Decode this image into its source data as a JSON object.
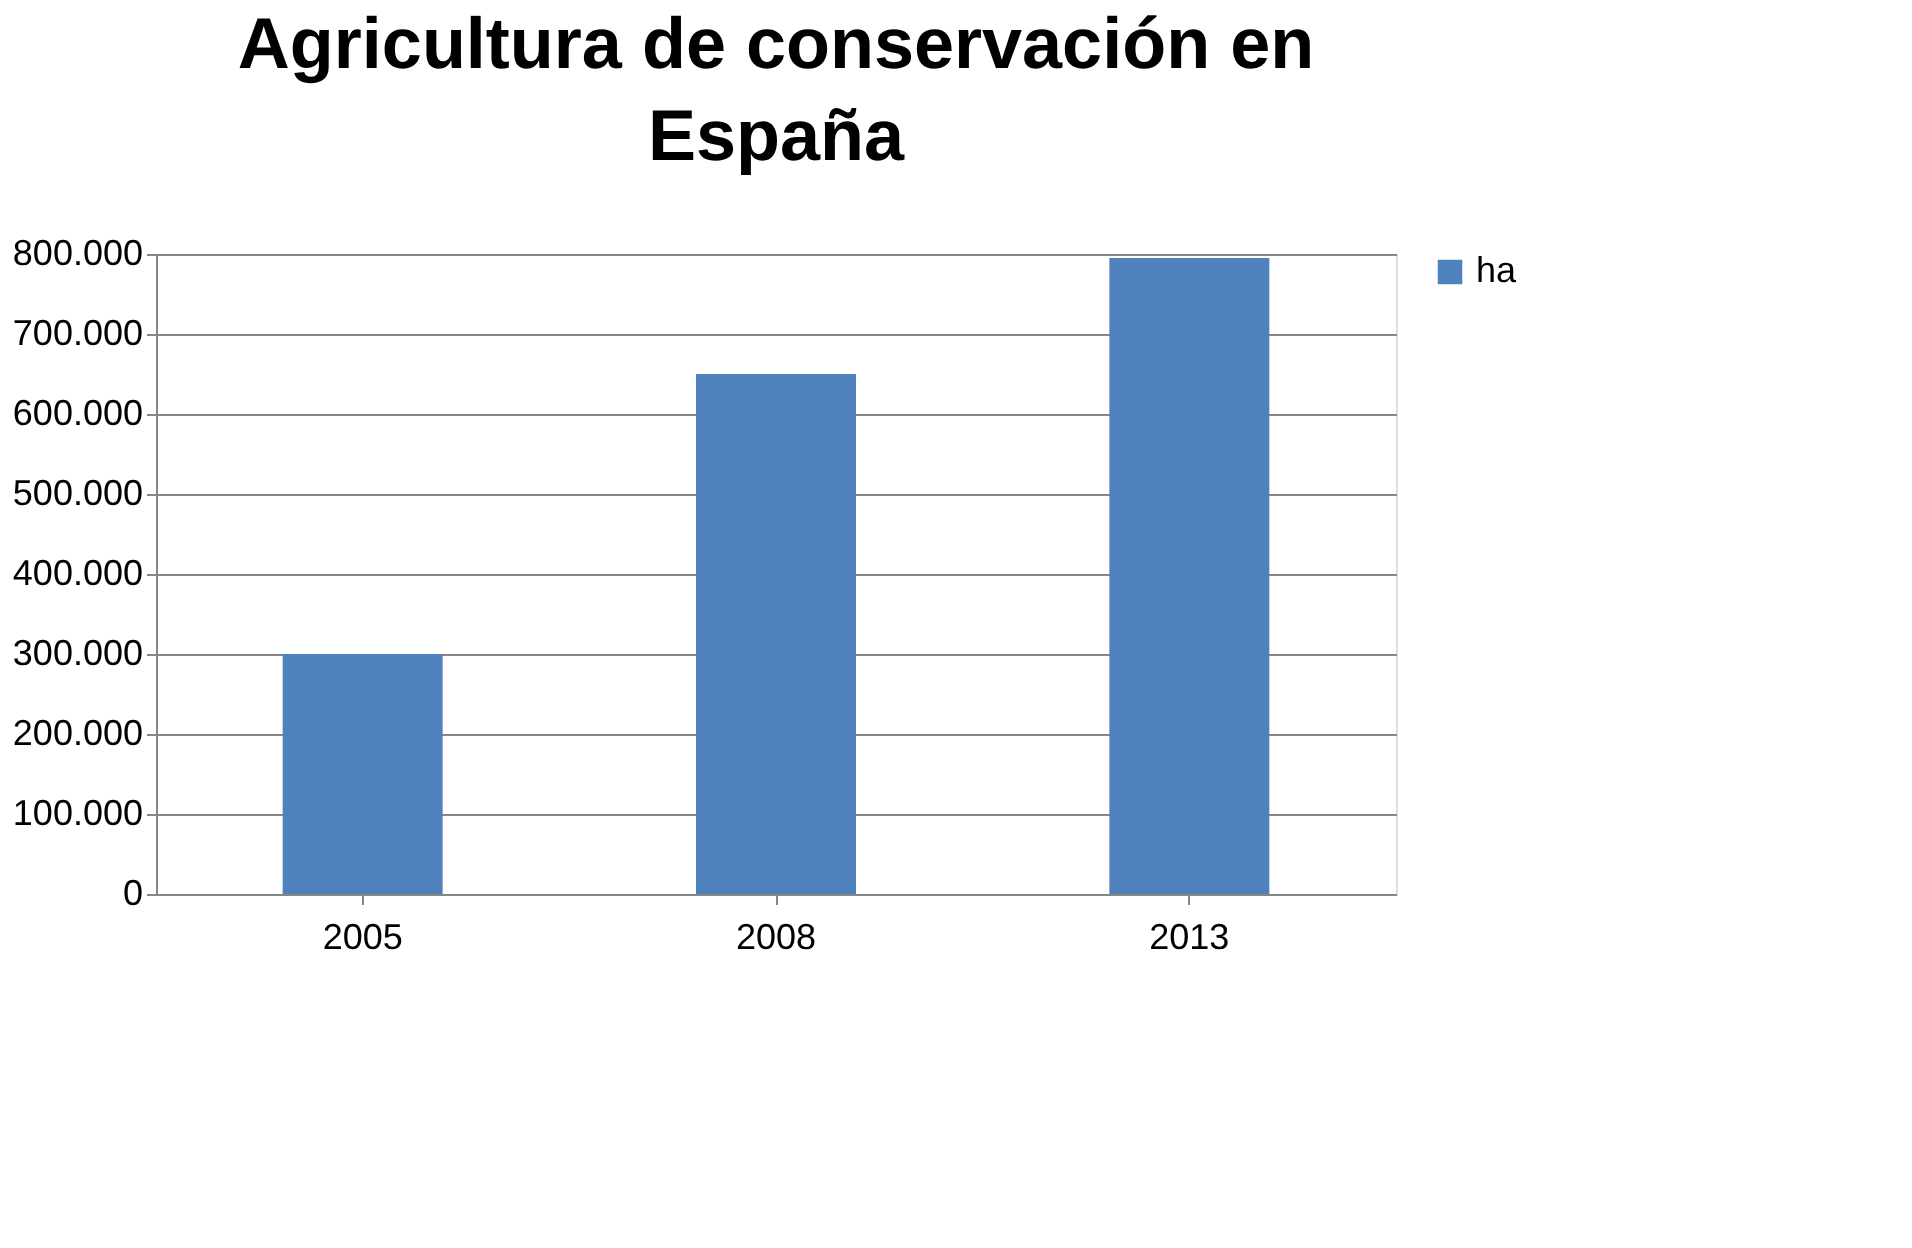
{
  "chart_data": {
    "type": "bar",
    "title": "Agricultura de conservación en España",
    "categories": [
      "2005",
      "2008",
      "2013"
    ],
    "series": [
      {
        "name": "ha",
        "color": "#4f81bd",
        "values": [
          300000,
          650000,
          795000
        ]
      }
    ],
    "ylim": [
      0,
      800000
    ],
    "yticks": [
      {
        "value": 0,
        "label": "0"
      },
      {
        "value": 100000,
        "label": "100.000"
      },
      {
        "value": 200000,
        "label": "200.000"
      },
      {
        "value": 300000,
        "label": "300.000"
      },
      {
        "value": 400000,
        "label": "400.000"
      },
      {
        "value": 500000,
        "label": "500.000"
      },
      {
        "value": 600000,
        "label": "600.000"
      },
      {
        "value": 700000,
        "label": "700.000"
      },
      {
        "value": 800000,
        "label": "800.000"
      }
    ],
    "grid": "y",
    "legend": "right"
  }
}
